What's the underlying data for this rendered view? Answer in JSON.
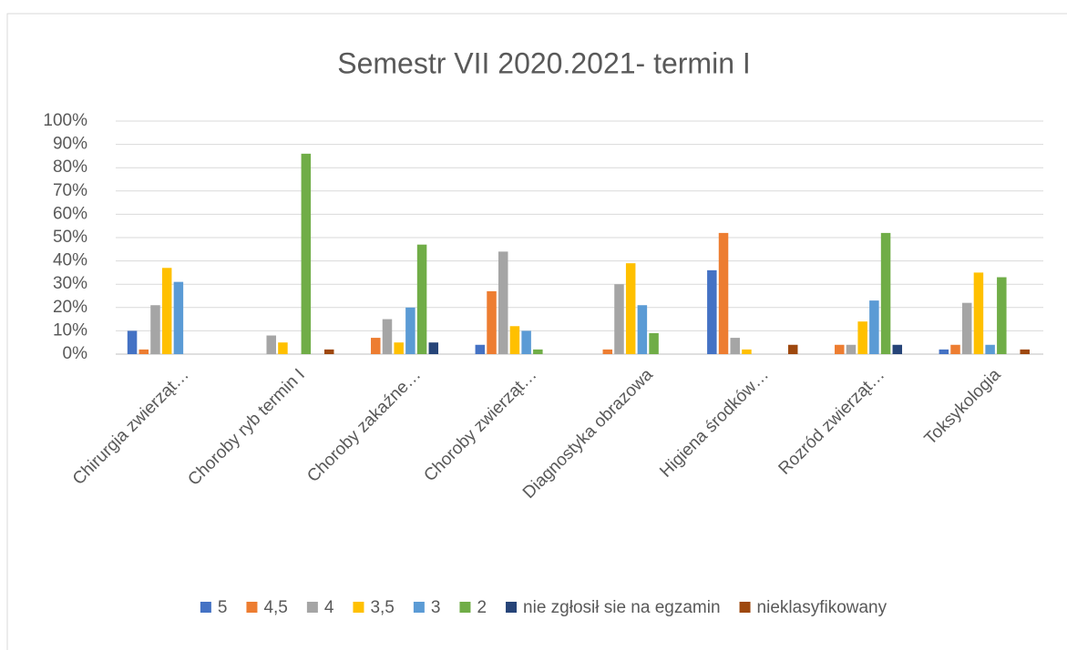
{
  "chart_data": {
    "type": "bar",
    "title": "Semestr VII 2020.2021- termin I",
    "categories": [
      "Chirurgia zwierząt…",
      "Choroby ryb termin I",
      "Choroby zakaźne…",
      "Choroby zwierząt…",
      "Diagnostyka obrazowa",
      "Higiena środków…",
      "Rozród zwierząt…",
      "Toksykologia"
    ],
    "series": [
      {
        "name": "5",
        "color": "#4472c4",
        "values": [
          10,
          0,
          0,
          4,
          0,
          36,
          0,
          2
        ]
      },
      {
        "name": "4,5",
        "color": "#ed7d31",
        "values": [
          2,
          0,
          7,
          27,
          2,
          52,
          4,
          4
        ]
      },
      {
        "name": "4",
        "color": "#a5a5a5",
        "values": [
          21,
          8,
          15,
          44,
          30,
          7,
          4,
          22
        ]
      },
      {
        "name": "3,5",
        "color": "#ffc000",
        "values": [
          37,
          5,
          5,
          12,
          39,
          2,
          14,
          35
        ]
      },
      {
        "name": "3",
        "color": "#5b9bd5",
        "values": [
          31,
          0,
          20,
          10,
          21,
          0,
          23,
          4
        ]
      },
      {
        "name": "2",
        "color": "#70ad47",
        "values": [
          0,
          86,
          47,
          2,
          9,
          0,
          52,
          33
        ]
      },
      {
        "name": "nie zgłosił sie na egzamin",
        "color": "#264478",
        "values": [
          0,
          0,
          5,
          0,
          0,
          0,
          4,
          0
        ]
      },
      {
        "name": "nieklasyfikowany",
        "color": "#9e480e",
        "values": [
          0,
          2,
          0,
          0,
          0,
          4,
          0,
          2
        ]
      }
    ],
    "ylim": [
      0,
      100
    ],
    "yticks": [
      {
        "value": 0,
        "label": "0%"
      },
      {
        "value": 10,
        "label": "10%"
      },
      {
        "value": 20,
        "label": "20%"
      },
      {
        "value": 30,
        "label": "30%"
      },
      {
        "value": 40,
        "label": "40%"
      },
      {
        "value": 50,
        "label": "50%"
      },
      {
        "value": 60,
        "label": "60%"
      },
      {
        "value": 70,
        "label": "70%"
      },
      {
        "value": 80,
        "label": "80%"
      },
      {
        "value": 90,
        "label": "90%"
      },
      {
        "value": 100,
        "label": "100%"
      }
    ],
    "grid": true,
    "legend": "bottom"
  }
}
